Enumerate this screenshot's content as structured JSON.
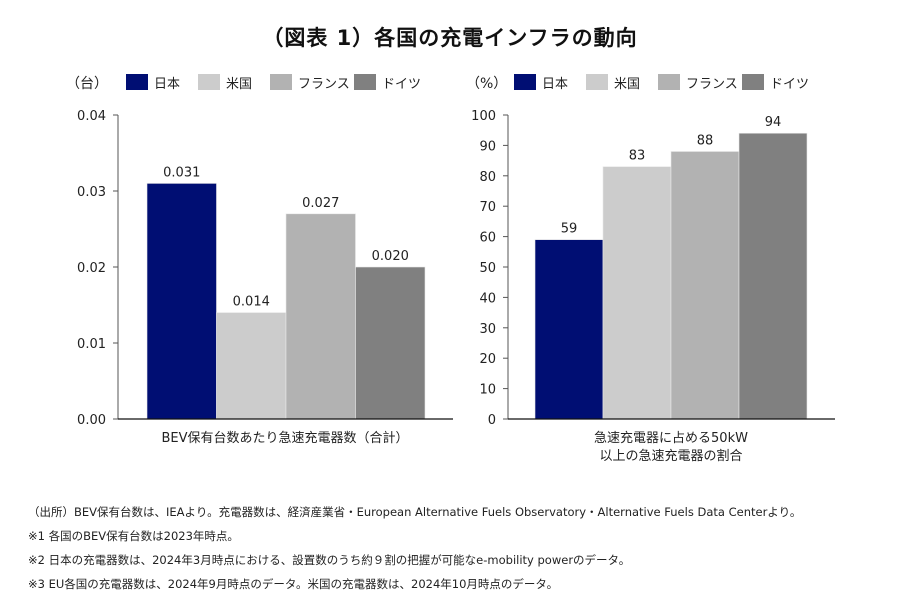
{
  "title": "（図表 1）各国の充電インフラの動向",
  "legend": [
    {
      "label": "日本",
      "color": "#000e73"
    },
    {
      "label": "米国",
      "color": "#cccccc"
    },
    {
      "label": "フランス",
      "color": "#b2b2b2"
    },
    {
      "label": "ドイツ",
      "color": "#808080"
    }
  ],
  "chart_data": [
    {
      "type": "bar",
      "unit": "（台）",
      "categories": [
        "BEV保有台数あたり急速充電器数（合計）"
      ],
      "series": [
        {
          "name": "日本",
          "values": [
            0.031
          ],
          "label": "0.031"
        },
        {
          "name": "米国",
          "values": [
            0.014
          ],
          "label": "0.014"
        },
        {
          "name": "フランス",
          "values": [
            0.027
          ],
          "label": "0.027"
        },
        {
          "name": "ドイツ",
          "values": [
            0.02
          ],
          "label": "0.020"
        }
      ],
      "ylim": [
        0,
        0.04
      ],
      "yticks": [
        "0.00",
        "0.01",
        "0.02",
        "0.03",
        "0.04"
      ],
      "ytick_values": [
        0,
        0.01,
        0.02,
        0.03,
        0.04
      ],
      "xlabel_lines": [
        "BEV保有台数あたり急速充電器数（合計）"
      ],
      "legend_position": "top",
      "grid": false
    },
    {
      "type": "bar",
      "unit": "（%）",
      "categories": [
        "急速充電器に占める50kW以上の急速充電器の割合"
      ],
      "series": [
        {
          "name": "日本",
          "values": [
            59
          ],
          "label": "59"
        },
        {
          "name": "米国",
          "values": [
            83
          ],
          "label": "83"
        },
        {
          "name": "フランス",
          "values": [
            88
          ],
          "label": "88"
        },
        {
          "name": "ドイツ",
          "values": [
            94
          ],
          "label": "94"
        }
      ],
      "ylim": [
        0,
        100
      ],
      "yticks": [
        "0",
        "10",
        "20",
        "30",
        "40",
        "50",
        "60",
        "70",
        "80",
        "90",
        "100"
      ],
      "ytick_values": [
        0,
        10,
        20,
        30,
        40,
        50,
        60,
        70,
        80,
        90,
        100
      ],
      "xlabel_lines": [
        "急速充電器に占める50kW",
        "以上の急速充電器の割合"
      ],
      "legend_position": "top",
      "grid": false
    }
  ],
  "footnotes": [
    "（出所）BEV保有台数は、IEAより。充電器数は、経済産業省・European Alternative Fuels Observatory・Alternative Fuels Data Centerより。",
    "※1 各国のBEV保有台数は2023年時点。",
    "※2 日本の充電器数は、2024年3月時点における、設置数のうち約９割の把握が可能なe-mobility powerのデータ。",
    "※3 EU各国の充電器数は、2024年9月時点のデータ。米国の充電器数は、2024年10月時点のデータ。"
  ]
}
